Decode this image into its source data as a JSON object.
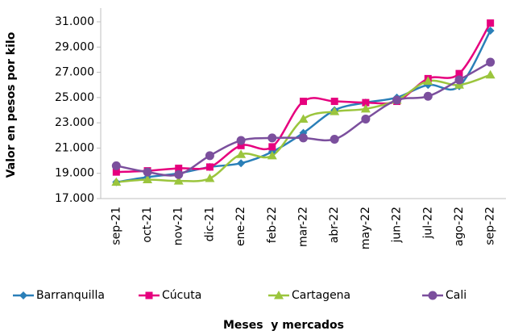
{
  "chart_data": {
    "type": "line",
    "y_label": "Valor en pesos por kilo",
    "x_label": "Meses  y mercados",
    "categories": [
      "sep-21",
      "oct-21",
      "nov-21",
      "dic-21",
      "ene-22",
      "feb-22",
      "mar-22",
      "abr-22",
      "may-22",
      "jun-22",
      "jul-22",
      "ago-22",
      "sep-22"
    ],
    "series": [
      {
        "name": "Barranquilla",
        "color": "#2a7fb8",
        "marker": "diamond",
        "values": [
          18300,
          18700,
          19000,
          19500,
          19800,
          20700,
          22200,
          24000,
          24600,
          25000,
          26000,
          25900,
          30300
        ]
      },
      {
        "name": "Cúcuta",
        "color": "#e6007e",
        "marker": "square",
        "values": [
          19100,
          19200,
          19400,
          19500,
          21200,
          21100,
          24700,
          24700,
          24600,
          24700,
          26500,
          26900,
          30900
        ]
      },
      {
        "name": "Cartagena",
        "color": "#9bc53d",
        "marker": "triangle",
        "values": [
          18300,
          18500,
          18400,
          18600,
          20500,
          20400,
          23300,
          23900,
          24100,
          24800,
          26300,
          26000,
          26800
        ]
      },
      {
        "name": "Cali",
        "color": "#7b4f9d",
        "marker": "circle",
        "values": [
          19600,
          19100,
          18900,
          20400,
          21600,
          21800,
          21800,
          21700,
          23300,
          24800,
          25100,
          26400,
          27800
        ]
      }
    ],
    "ylim": [
      17000,
      31000
    ],
    "yticks": [
      {
        "value": 17000,
        "label": "17.000"
      },
      {
        "value": 19000,
        "label": "19.000"
      },
      {
        "value": 21000,
        "label": "21.000"
      },
      {
        "value": 23000,
        "label": "23.000"
      },
      {
        "value": 25000,
        "label": "25.000"
      },
      {
        "value": 27000,
        "label": "27.000"
      },
      {
        "value": 29000,
        "label": "29.000"
      },
      {
        "value": 31000,
        "label": "31.000"
      }
    ],
    "legend": "bottom"
  }
}
